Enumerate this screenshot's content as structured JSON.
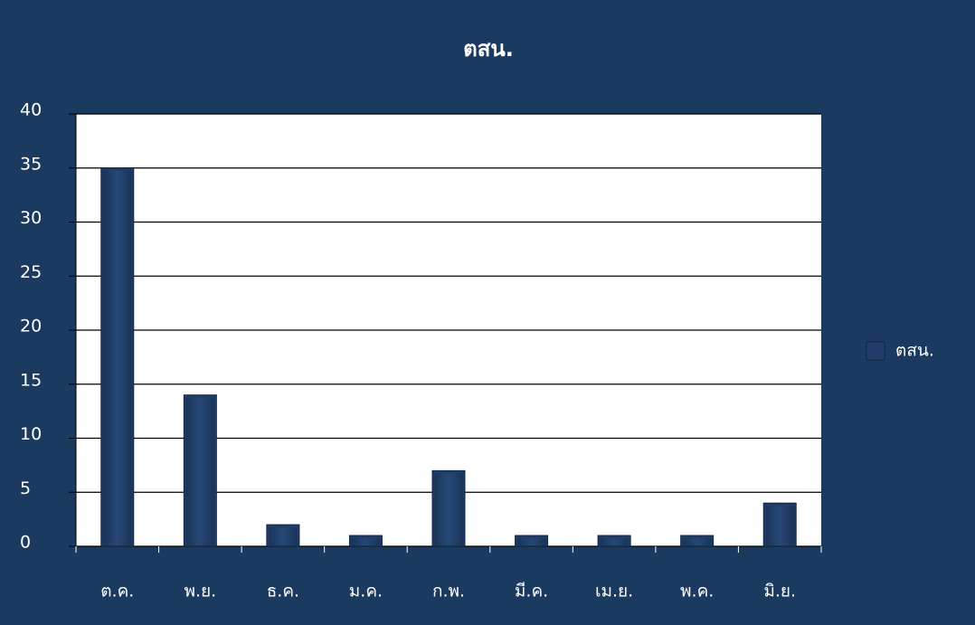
{
  "chart_data": {
    "type": "bar",
    "title": "ตสน.",
    "categories": [
      "ต.ค.",
      "พ.ย.",
      "ธ.ค.",
      "ม.ค.",
      "ก.พ.",
      "มี.ค.",
      "เม.ย.",
      "พ.ค.",
      "มิ.ย."
    ],
    "series": [
      {
        "name": "ตสน.",
        "color": "#1f3d68",
        "values": [
          35,
          14,
          2,
          1,
          7,
          1,
          1,
          1,
          4
        ]
      }
    ],
    "ylim": [
      0,
      40
    ],
    "yticks": [
      0,
      5,
      10,
      15,
      20,
      25,
      30,
      35,
      40
    ],
    "grid": true,
    "legend": "right"
  }
}
